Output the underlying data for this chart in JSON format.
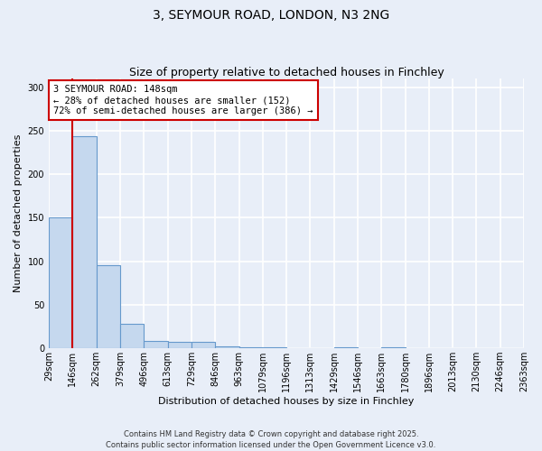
{
  "title": "3, SEYMOUR ROAD, LONDON, N3 2NG",
  "subtitle": "Size of property relative to detached houses in Finchley",
  "xlabel": "Distribution of detached houses by size in Finchley",
  "ylabel": "Number of detached properties",
  "bar_edges": [
    29,
    146,
    262,
    379,
    496,
    613,
    729,
    846,
    963,
    1079,
    1196,
    1313,
    1429,
    1546,
    1663,
    1780,
    1896,
    2013,
    2130,
    2246,
    2363
  ],
  "bar_heights": [
    150,
    244,
    96,
    28,
    8,
    7,
    7,
    2,
    1,
    1,
    0,
    0,
    1,
    0,
    1,
    0,
    0,
    0,
    0,
    0
  ],
  "bar_color": "#c5d8ee",
  "bar_edge_color": "#6699cc",
  "ylim": [
    0,
    310
  ],
  "yticks": [
    0,
    50,
    100,
    150,
    200,
    250,
    300
  ],
  "property_line_x": 146,
  "annotation_text": "3 SEYMOUR ROAD: 148sqm\n← 28% of detached houses are smaller (152)\n72% of semi-detached houses are larger (386) →",
  "annotation_box_color": "#ffffff",
  "annotation_border_color": "#cc0000",
  "property_line_color": "#cc0000",
  "footer_text": "Contains HM Land Registry data © Crown copyright and database right 2025.\nContains public sector information licensed under the Open Government Licence v3.0.",
  "background_color": "#e8eef8",
  "grid_color": "#ffffff",
  "title_fontsize": 10,
  "subtitle_fontsize": 9,
  "axis_fontsize": 8,
  "tick_fontsize": 7,
  "annotation_fontsize": 7.5,
  "footer_fontsize": 6
}
